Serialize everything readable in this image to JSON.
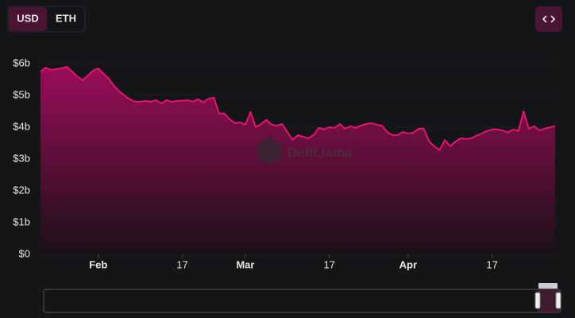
{
  "chart_data": {
    "type": "area",
    "toggle": [
      "USD",
      "ETH"
    ],
    "watermark": "DefiLlama",
    "color": "#e8136f",
    "grid": true,
    "x": [
      -11,
      -10,
      -9,
      -8,
      -7,
      -6,
      -5,
      -4,
      -3,
      -2,
      -1,
      0,
      1,
      2,
      3,
      4,
      5,
      6,
      7,
      8,
      9,
      10,
      11,
      12,
      13,
      14,
      15,
      16,
      17,
      18,
      19,
      20,
      21,
      22,
      23,
      24,
      25,
      26,
      27,
      28,
      29,
      30,
      31,
      32,
      33,
      34,
      35,
      36,
      37,
      38,
      39,
      40,
      41,
      42,
      43,
      44,
      45,
      46,
      47,
      48,
      49,
      50,
      51,
      52,
      53,
      54,
      55,
      56,
      57,
      58,
      59,
      60,
      61,
      62,
      63,
      64,
      65,
      66,
      67,
      68,
      69,
      70,
      71,
      72,
      73,
      74,
      75,
      76,
      77,
      78,
      79,
      80,
      81,
      82,
      83,
      84,
      85,
      86,
      87
    ],
    "values": [
      5.75,
      5.87,
      5.8,
      5.83,
      5.85,
      5.9,
      5.75,
      5.6,
      5.48,
      5.62,
      5.78,
      5.85,
      5.68,
      5.53,
      5.3,
      5.13,
      5.0,
      4.88,
      4.8,
      4.8,
      4.83,
      4.8,
      4.85,
      4.75,
      4.85,
      4.8,
      4.83,
      4.83,
      4.85,
      4.8,
      4.88,
      4.78,
      4.9,
      4.93,
      4.43,
      4.43,
      4.25,
      4.13,
      4.15,
      4.08,
      4.48,
      4.0,
      4.1,
      4.23,
      4.08,
      4.05,
      4.1,
      3.85,
      3.6,
      3.75,
      3.7,
      3.65,
      3.75,
      3.98,
      3.93,
      4.0,
      3.98,
      4.1,
      3.95,
      4.03,
      3.98,
      4.05,
      4.1,
      4.13,
      4.08,
      4.05,
      3.85,
      3.75,
      3.75,
      3.85,
      3.8,
      3.83,
      3.95,
      3.95,
      3.55,
      3.4,
      3.28,
      3.6,
      3.4,
      3.55,
      3.65,
      3.63,
      3.65,
      3.73,
      3.8,
      3.88,
      3.93,
      3.93,
      3.9,
      3.83,
      3.93,
      3.88,
      4.5,
      3.95,
      4.03,
      3.9,
      3.95,
      4.0,
      4.03
    ],
    "xlim": [
      -11,
      87
    ],
    "xticks": [
      {
        "value": 0,
        "label": "Feb"
      },
      {
        "value": 16,
        "label": "17"
      },
      {
        "value": 28,
        "label": "Mar"
      },
      {
        "value": 44,
        "label": "17"
      },
      {
        "value": 59,
        "label": "Apr"
      },
      {
        "value": 75,
        "label": "17"
      }
    ],
    "ylim": [
      0,
      6
    ],
    "yticks": [
      {
        "value": 0,
        "label": "$0"
      },
      {
        "value": 1,
        "label": "$1b"
      },
      {
        "value": 2,
        "label": "$2b"
      },
      {
        "value": 3,
        "label": "$3b"
      },
      {
        "value": 4,
        "label": "$4b"
      },
      {
        "value": 5,
        "label": "$5b"
      },
      {
        "value": 6,
        "label": "$6b"
      }
    ]
  }
}
